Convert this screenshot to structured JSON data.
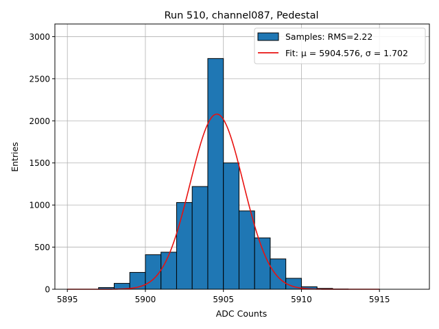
{
  "chart_data": {
    "type": "bar",
    "title": "Run 510, channel087, Pedestal",
    "xlabel": "ADC Counts",
    "ylabel": "Entries",
    "xlim": [
      5894.2,
      5918.2
    ],
    "ylim": [
      0,
      3150
    ],
    "xticks": [
      5895,
      5900,
      5905,
      5910,
      5915
    ],
    "yticks": [
      0,
      500,
      1000,
      1500,
      2000,
      2500,
      3000
    ],
    "grid": true,
    "legend_position": "top-right",
    "histogram": {
      "name": "Samples: RMS=2.22",
      "bin_width": 1,
      "bin_starts": [
        5897,
        5898,
        5899,
        5900,
        5901,
        5902,
        5903,
        5904,
        5905,
        5906,
        5907,
        5908,
        5909,
        5910,
        5911,
        5912
      ],
      "values": [
        20,
        70,
        200,
        410,
        440,
        1030,
        1220,
        2740,
        1500,
        930,
        610,
        360,
        130,
        30,
        10,
        3
      ],
      "color": "#1f77b4",
      "edge_color": "#000000"
    },
    "fit": {
      "name": "Fit: μ = 5904.576, σ = 1.702",
      "mu": 5904.576,
      "sigma": 1.702,
      "amplitude": 2080,
      "x_range": [
        5895,
        5915
      ],
      "color": "#e8110f"
    }
  }
}
